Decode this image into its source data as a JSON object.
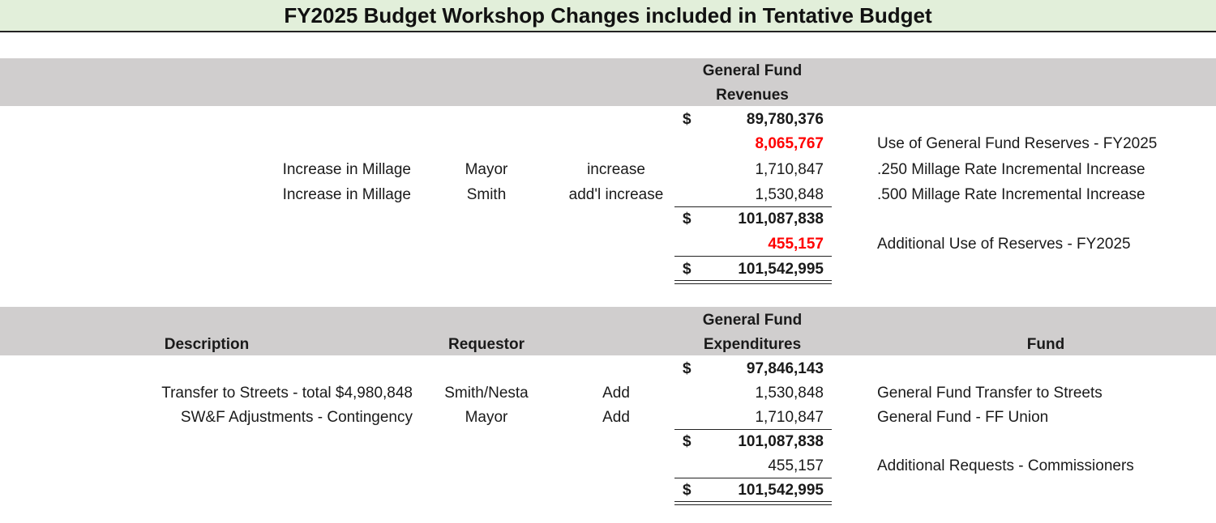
{
  "title": "FY2025 Budget Workshop Changes included in Tentative Budget",
  "revenues": {
    "header_line1": "General Fund",
    "header_line2": "Revenues",
    "currency": "$",
    "starting_total": "89,780,376",
    "reserve_use": {
      "amount": "8,065,767",
      "note": "Use of General Fund Reserves - FY2025"
    },
    "rows": [
      {
        "description": "Increase in Millage",
        "requestor": "Mayor",
        "action": "increase",
        "amount": "1,710,847",
        "note": ".250 Millage Rate Incremental Increase"
      },
      {
        "description": "Increase in Millage",
        "requestor": "Smith",
        "action": "add'l increase",
        "amount": "1,530,848",
        "note": ".500 Millage Rate Incremental Increase"
      }
    ],
    "subtotal": "101,087,838",
    "additional_reserves": {
      "amount": "455,157",
      "note": "Additional Use of Reserves - FY2025"
    },
    "grand_total": "101,542,995"
  },
  "expenditures": {
    "col_description": "Description",
    "col_requestor": "Requestor",
    "header_line1": "General Fund",
    "header_line2": "Expenditures",
    "col_fund": "Fund",
    "currency": "$",
    "starting_total": "97,846,143",
    "rows": [
      {
        "description": "Transfer to Streets -  total $4,980,848",
        "requestor": "Smith/Nesta",
        "action": "Add",
        "amount": "1,530,848",
        "fund": "General Fund Transfer to Streets"
      },
      {
        "description": "SW&F Adjustments - Contingency",
        "requestor": "Mayor",
        "action": "Add",
        "amount": "1,710,847",
        "fund": "General Fund - FF Union"
      }
    ],
    "subtotal": "101,087,838",
    "additional_requests": {
      "amount": "455,157",
      "note": "Additional Requests - Commissioners"
    },
    "grand_total": "101,542,995"
  },
  "colors": {
    "title_background": "#e2efda",
    "header_band": "#d0cece",
    "negative": "#ff0000"
  }
}
